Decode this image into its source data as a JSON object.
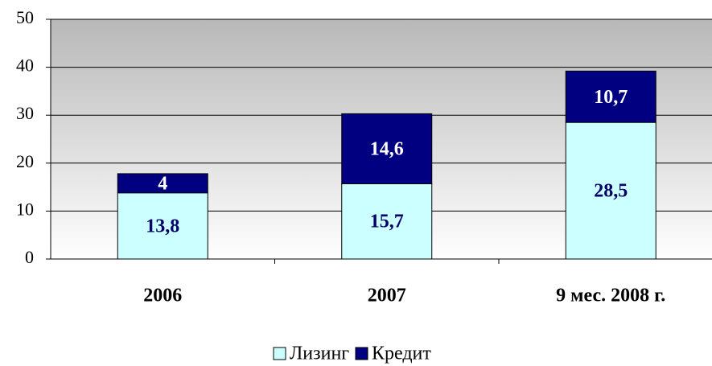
{
  "chart_data": {
    "type": "stacked_bar",
    "categories": [
      "2006",
      "2007",
      "9 мес. 2008 г."
    ],
    "series": [
      {
        "name": "Лизинг",
        "color": "#ccffff",
        "label_color": "#000066",
        "values": [
          13.8,
          15.7,
          28.5
        ],
        "value_labels": [
          "13,8",
          "15,7",
          "28,5"
        ]
      },
      {
        "name": "Кредит",
        "color": "#000080",
        "label_color": "#ffffff",
        "values": [
          4,
          14.6,
          10.7
        ],
        "value_labels": [
          "4",
          "14,6",
          "10,7"
        ]
      }
    ],
    "ylim": [
      0,
      50
    ],
    "yticks": [
      0,
      10,
      20,
      30,
      40,
      50
    ],
    "grid": true,
    "legend": "bottom"
  }
}
